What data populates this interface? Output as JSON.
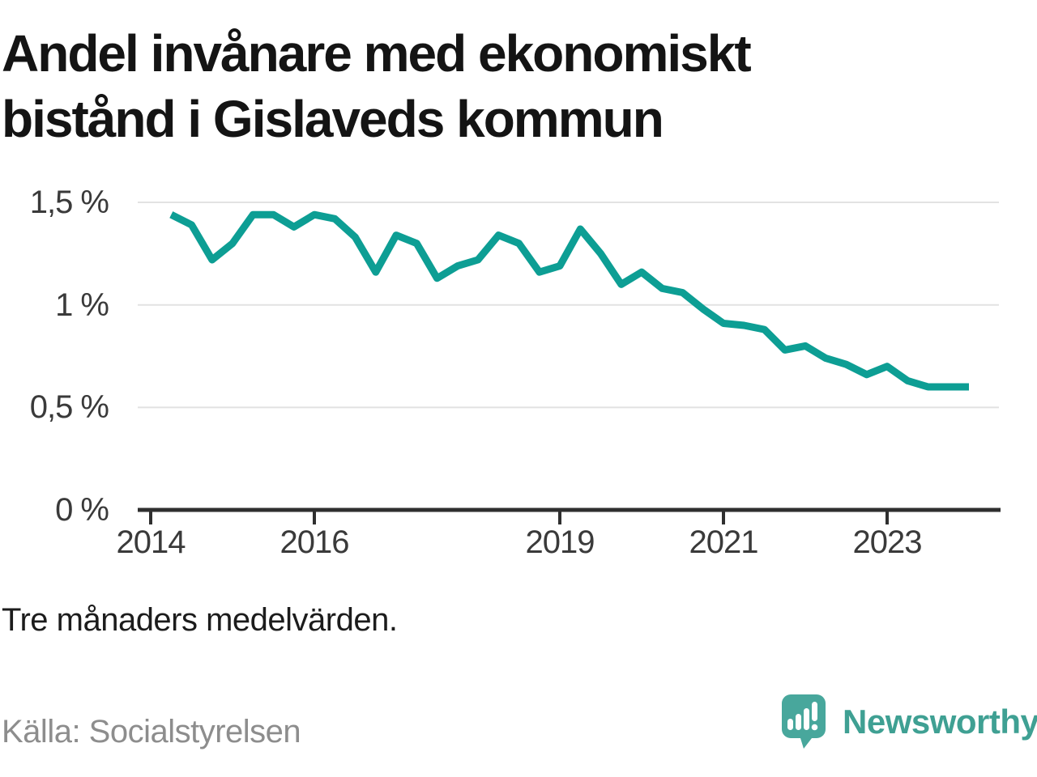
{
  "header": {
    "title_line1": "Andel invånare med ekonomiskt",
    "title_line2": "bistånd i Gislaveds kommun"
  },
  "footnote": "Tre månaders medelvärden.",
  "source": "Källa: Socialstyrelsen",
  "branding": {
    "wordmark": "Newsworthy",
    "logo_icon": "newsworthy-speech-bubble-bar-chart-icon",
    "brand_color": "#3fa093",
    "logo_bubble_color": "#48a79c"
  },
  "chart_data": {
    "type": "line",
    "title": "Andel invånare med ekonomiskt bistånd i Gislaveds kommun",
    "note": "Tre månaders medelvärden.",
    "source": "Källa: Socialstyrelsen",
    "unit": "%",
    "line_color": "#0d9e94",
    "grid": "horizontal",
    "legend": "none",
    "ylim": [
      0,
      1.58
    ],
    "xlim": [
      2013.85,
      2024.4
    ],
    "y_ticks": [
      {
        "label": "1,5 %",
        "value": 1.5
      },
      {
        "label": "1 %",
        "value": 1.0
      },
      {
        "label": "0,5 %",
        "value": 0.5
      },
      {
        "label": "0 %",
        "value": 0.0
      }
    ],
    "x_ticks": [
      {
        "label": "2014",
        "value": 2014
      },
      {
        "label": "2016",
        "value": 2016
      },
      {
        "label": "2019",
        "value": 2019
      },
      {
        "label": "2021",
        "value": 2021
      },
      {
        "label": "2023",
        "value": 2023
      }
    ],
    "periods": [
      "2014-04",
      "2014-07",
      "2014-10",
      "2015-01",
      "2015-04",
      "2015-07",
      "2015-10",
      "2016-01",
      "2016-04",
      "2016-07",
      "2016-10",
      "2017-01",
      "2017-04",
      "2017-07",
      "2017-10",
      "2018-01",
      "2018-04",
      "2018-07",
      "2018-10",
      "2019-01",
      "2019-04",
      "2019-07",
      "2019-10",
      "2020-01",
      "2020-04",
      "2020-07",
      "2020-10",
      "2021-01",
      "2021-04",
      "2021-07",
      "2021-10",
      "2022-01",
      "2022-04",
      "2022-07",
      "2022-10",
      "2023-01",
      "2023-04",
      "2023-07",
      "2023-10",
      "2024-01"
    ],
    "values": [
      1.44,
      1.39,
      1.22,
      1.3,
      1.44,
      1.44,
      1.38,
      1.44,
      1.42,
      1.33,
      1.16,
      1.34,
      1.3,
      1.13,
      1.19,
      1.22,
      1.34,
      1.3,
      1.16,
      1.19,
      1.37,
      1.25,
      1.1,
      1.16,
      1.08,
      1.06,
      0.98,
      0.91,
      0.9,
      0.88,
      0.78,
      0.8,
      0.74,
      0.71,
      0.66,
      0.7,
      0.63,
      0.6,
      0.6,
      0.6
    ]
  }
}
